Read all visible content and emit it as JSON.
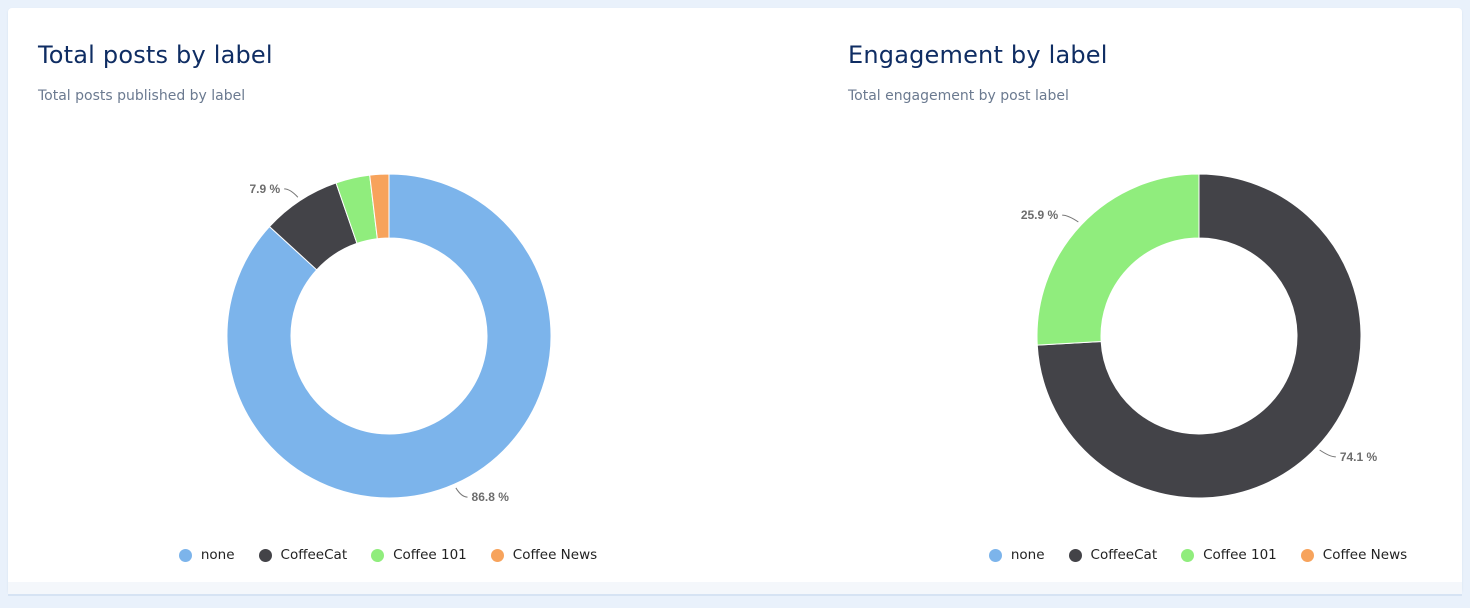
{
  "colors": {
    "none": "#7cb4eb",
    "CoffeeCat": "#434348",
    "Coffee 101": "#90ed7d",
    "Coffee News": "#f7a35c"
  },
  "chart_data": [
    {
      "type": "pie",
      "donut": true,
      "title": "Total posts by label",
      "subtitle": "Total posts published by label",
      "categories": [
        "none",
        "CoffeeCat",
        "Coffee 101",
        "Coffee News"
      ],
      "values": [
        86.8,
        7.9,
        3.4,
        1.9
      ],
      "shown_labels": [
        "86.8 %",
        "7.9 %",
        "",
        ""
      ],
      "legend": [
        "none",
        "CoffeeCat",
        "Coffee 101",
        "Coffee News"
      ],
      "legend_position": "bottom"
    },
    {
      "type": "pie",
      "donut": true,
      "title": "Engagement by label",
      "subtitle": "Total engagement by post label",
      "categories": [
        "none",
        "CoffeeCat",
        "Coffee 101",
        "Coffee News"
      ],
      "values": [
        0,
        74.1,
        25.9,
        0
      ],
      "shown_labels": [
        "",
        "74.1 %",
        "25.9 %",
        ""
      ],
      "legend": [
        "none",
        "CoffeeCat",
        "Coffee 101",
        "Coffee News"
      ],
      "legend_position": "bottom"
    }
  ]
}
